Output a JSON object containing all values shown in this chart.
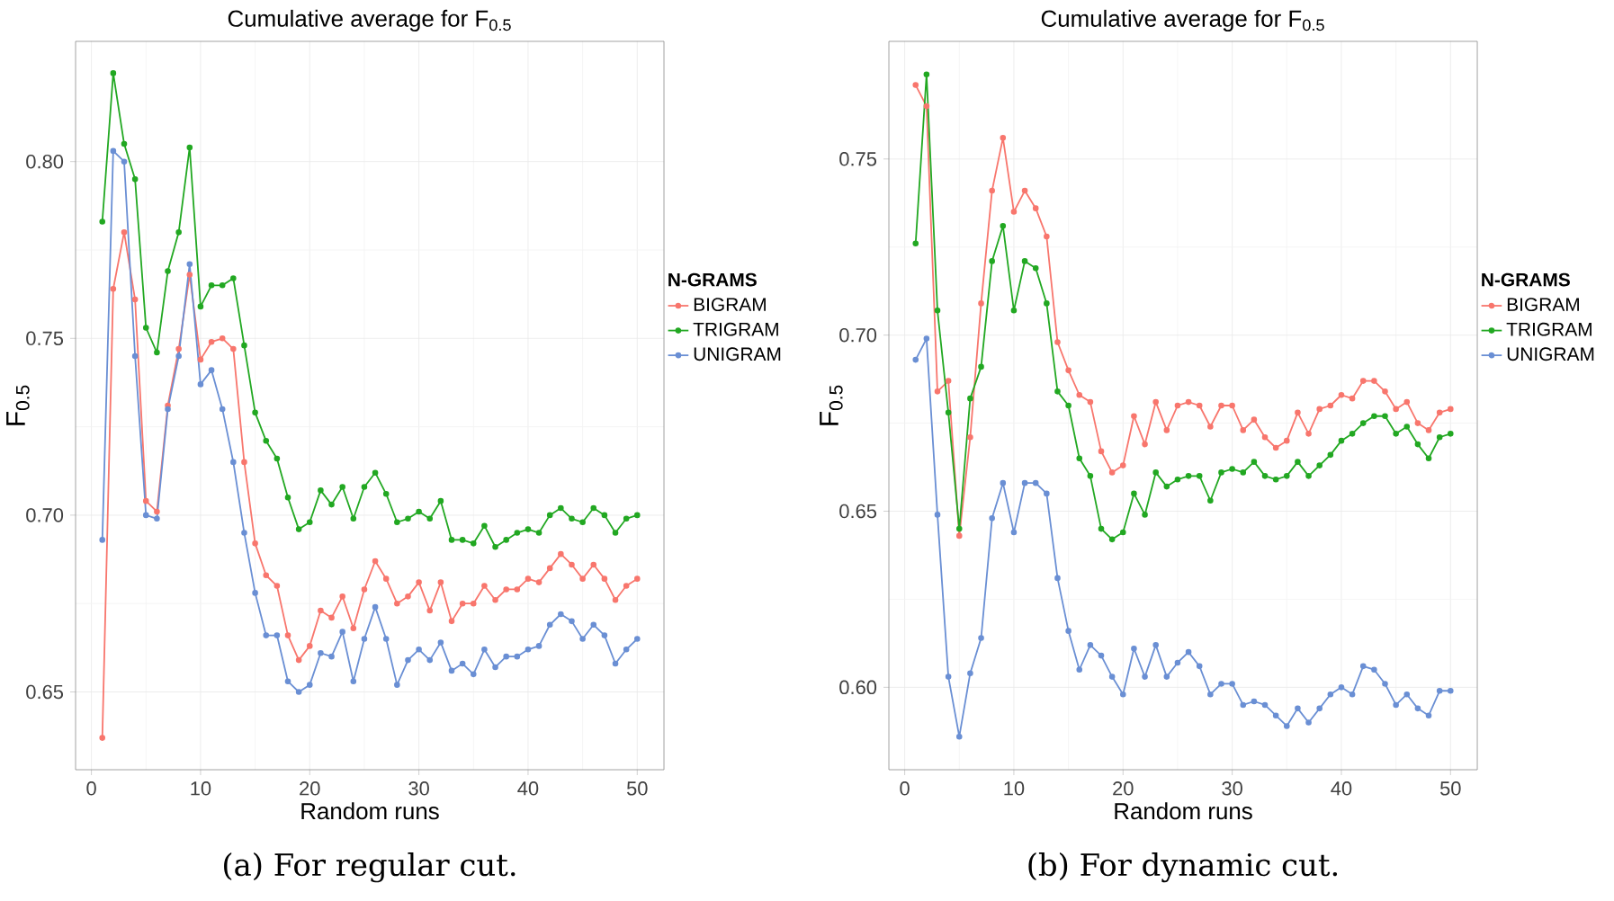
{
  "chart_data": [
    {
      "type": "line",
      "title": "Cumulative average for F$_{0.5}$",
      "xlabel": "Random runs",
      "ylabel": "F$_{0.5}$",
      "legend_title": "N-GRAMS",
      "legend": "right",
      "grid": true,
      "marker": "circle",
      "line_style": "solid",
      "xlim": [
        -1.45,
        52.45
      ],
      "xticks": [
        0,
        10,
        20,
        30,
        40,
        50
      ],
      "ylim": [
        0.628,
        0.834
      ],
      "yticks": [
        {
          "value": 0.65,
          "label": "0.65"
        },
        {
          "value": 0.7,
          "label": "0.70"
        },
        {
          "value": 0.75,
          "label": "0.75"
        },
        {
          "value": 0.8,
          "label": "0.80"
        }
      ],
      "annotations": [
        "(a) For regular cut."
      ],
      "x": [
        1,
        2,
        3,
        4,
        5,
        6,
        7,
        8,
        9,
        10,
        11,
        12,
        13,
        14,
        15,
        16,
        17,
        18,
        19,
        20,
        21,
        22,
        23,
        24,
        25,
        26,
        27,
        28,
        29,
        30,
        31,
        32,
        33,
        34,
        35,
        36,
        37,
        38,
        39,
        40,
        41,
        42,
        43,
        44,
        45,
        46,
        47,
        48,
        49,
        50
      ],
      "series": [
        {
          "name": "BIGRAM",
          "color": "#f8766d",
          "values": [
            0.637,
            0.764,
            0.78,
            0.761,
            0.704,
            0.701,
            0.731,
            0.747,
            0.768,
            0.744,
            0.749,
            0.75,
            0.747,
            0.715,
            0.692,
            0.683,
            0.68,
            0.666,
            0.659,
            0.663,
            0.673,
            0.671,
            0.677,
            0.668,
            0.679,
            0.687,
            0.682,
            0.675,
            0.677,
            0.681,
            0.673,
            0.681,
            0.67,
            0.675,
            0.675,
            0.68,
            0.676,
            0.679,
            0.679,
            0.682,
            0.681,
            0.685,
            0.689,
            0.686,
            0.682,
            0.686,
            0.682,
            0.676,
            0.68,
            0.682
          ]
        },
        {
          "name": "TRIGRAM",
          "color": "#22a822",
          "values": [
            0.783,
            0.825,
            0.805,
            0.795,
            0.753,
            0.746,
            0.769,
            0.78,
            0.804,
            0.759,
            0.765,
            0.765,
            0.767,
            0.748,
            0.729,
            0.721,
            0.716,
            0.705,
            0.696,
            0.698,
            0.707,
            0.703,
            0.708,
            0.699,
            0.708,
            0.712,
            0.706,
            0.698,
            0.699,
            0.701,
            0.699,
            0.704,
            0.693,
            0.693,
            0.692,
            0.697,
            0.691,
            0.693,
            0.695,
            0.696,
            0.695,
            0.7,
            0.702,
            0.699,
            0.698,
            0.702,
            0.7,
            0.695,
            0.699,
            0.7
          ]
        },
        {
          "name": "UNIGRAM",
          "color": "#6a8fd4",
          "values": [
            0.693,
            0.803,
            0.8,
            0.745,
            0.7,
            0.699,
            0.73,
            0.745,
            0.771,
            0.737,
            0.741,
            0.73,
            0.715,
            0.695,
            0.678,
            0.666,
            0.666,
            0.653,
            0.65,
            0.652,
            0.661,
            0.66,
            0.667,
            0.653,
            0.665,
            0.674,
            0.665,
            0.652,
            0.659,
            0.662,
            0.659,
            0.664,
            0.656,
            0.658,
            0.655,
            0.662,
            0.657,
            0.66,
            0.66,
            0.662,
            0.663,
            0.669,
            0.672,
            0.67,
            0.665,
            0.669,
            0.666,
            0.658,
            0.662,
            0.665
          ]
        }
      ]
    },
    {
      "type": "line",
      "title": "Cumulative average for F$_{0.5}$",
      "xlabel": "Random runs",
      "ylabel": "F$_{0.5}$",
      "legend_title": "N-GRAMS",
      "legend": "right",
      "grid": true,
      "marker": "circle",
      "line_style": "solid",
      "xlim": [
        -1.45,
        52.45
      ],
      "xticks": [
        0,
        10,
        20,
        30,
        40,
        50
      ],
      "ylim": [
        0.5766,
        0.7834
      ],
      "yticks": [
        {
          "value": 0.6,
          "label": "0.60"
        },
        {
          "value": 0.65,
          "label": "0.65"
        },
        {
          "value": 0.7,
          "label": "0.70"
        },
        {
          "value": 0.75,
          "label": "0.75"
        }
      ],
      "annotations": [
        "(b) For dynamic cut."
      ],
      "x": [
        1,
        2,
        3,
        4,
        5,
        6,
        7,
        8,
        9,
        10,
        11,
        12,
        13,
        14,
        15,
        16,
        17,
        18,
        19,
        20,
        21,
        22,
        23,
        24,
        25,
        26,
        27,
        28,
        29,
        30,
        31,
        32,
        33,
        34,
        35,
        36,
        37,
        38,
        39,
        40,
        41,
        42,
        43,
        44,
        45,
        46,
        47,
        48,
        49,
        50
      ],
      "series": [
        {
          "name": "BIGRAM",
          "color": "#f8766d",
          "values": [
            0.771,
            0.765,
            0.684,
            0.687,
            0.643,
            0.671,
            0.709,
            0.741,
            0.756,
            0.735,
            0.741,
            0.736,
            0.728,
            0.698,
            0.69,
            0.683,
            0.681,
            0.667,
            0.661,
            0.663,
            0.677,
            0.669,
            0.681,
            0.673,
            0.68,
            0.681,
            0.68,
            0.674,
            0.68,
            0.68,
            0.673,
            0.676,
            0.671,
            0.668,
            0.67,
            0.678,
            0.672,
            0.679,
            0.68,
            0.683,
            0.682,
            0.687,
            0.687,
            0.684,
            0.679,
            0.681,
            0.675,
            0.673,
            0.678,
            0.679
          ]
        },
        {
          "name": "TRIGRAM",
          "color": "#22a822",
          "values": [
            0.726,
            0.774,
            0.707,
            0.678,
            0.645,
            0.682,
            0.691,
            0.721,
            0.731,
            0.707,
            0.721,
            0.719,
            0.709,
            0.684,
            0.68,
            0.665,
            0.66,
            0.645,
            0.642,
            0.644,
            0.655,
            0.649,
            0.661,
            0.657,
            0.659,
            0.66,
            0.66,
            0.653,
            0.661,
            0.662,
            0.661,
            0.664,
            0.66,
            0.659,
            0.66,
            0.664,
            0.66,
            0.663,
            0.666,
            0.67,
            0.672,
            0.675,
            0.677,
            0.677,
            0.672,
            0.674,
            0.669,
            0.665,
            0.671,
            0.672
          ]
        },
        {
          "name": "UNIGRAM",
          "color": "#6a8fd4",
          "values": [
            0.693,
            0.699,
            0.649,
            0.603,
            0.586,
            0.604,
            0.614,
            0.648,
            0.658,
            0.644,
            0.658,
            0.658,
            0.655,
            0.631,
            0.616,
            0.605,
            0.612,
            0.609,
            0.603,
            0.598,
            0.611,
            0.603,
            0.612,
            0.603,
            0.607,
            0.61,
            0.606,
            0.598,
            0.601,
            0.601,
            0.595,
            0.596,
            0.595,
            0.592,
            0.589,
            0.594,
            0.59,
            0.594,
            0.598,
            0.6,
            0.598,
            0.606,
            0.605,
            0.601,
            0.595,
            0.598,
            0.594,
            0.592,
            0.599,
            0.599
          ]
        }
      ]
    }
  ]
}
